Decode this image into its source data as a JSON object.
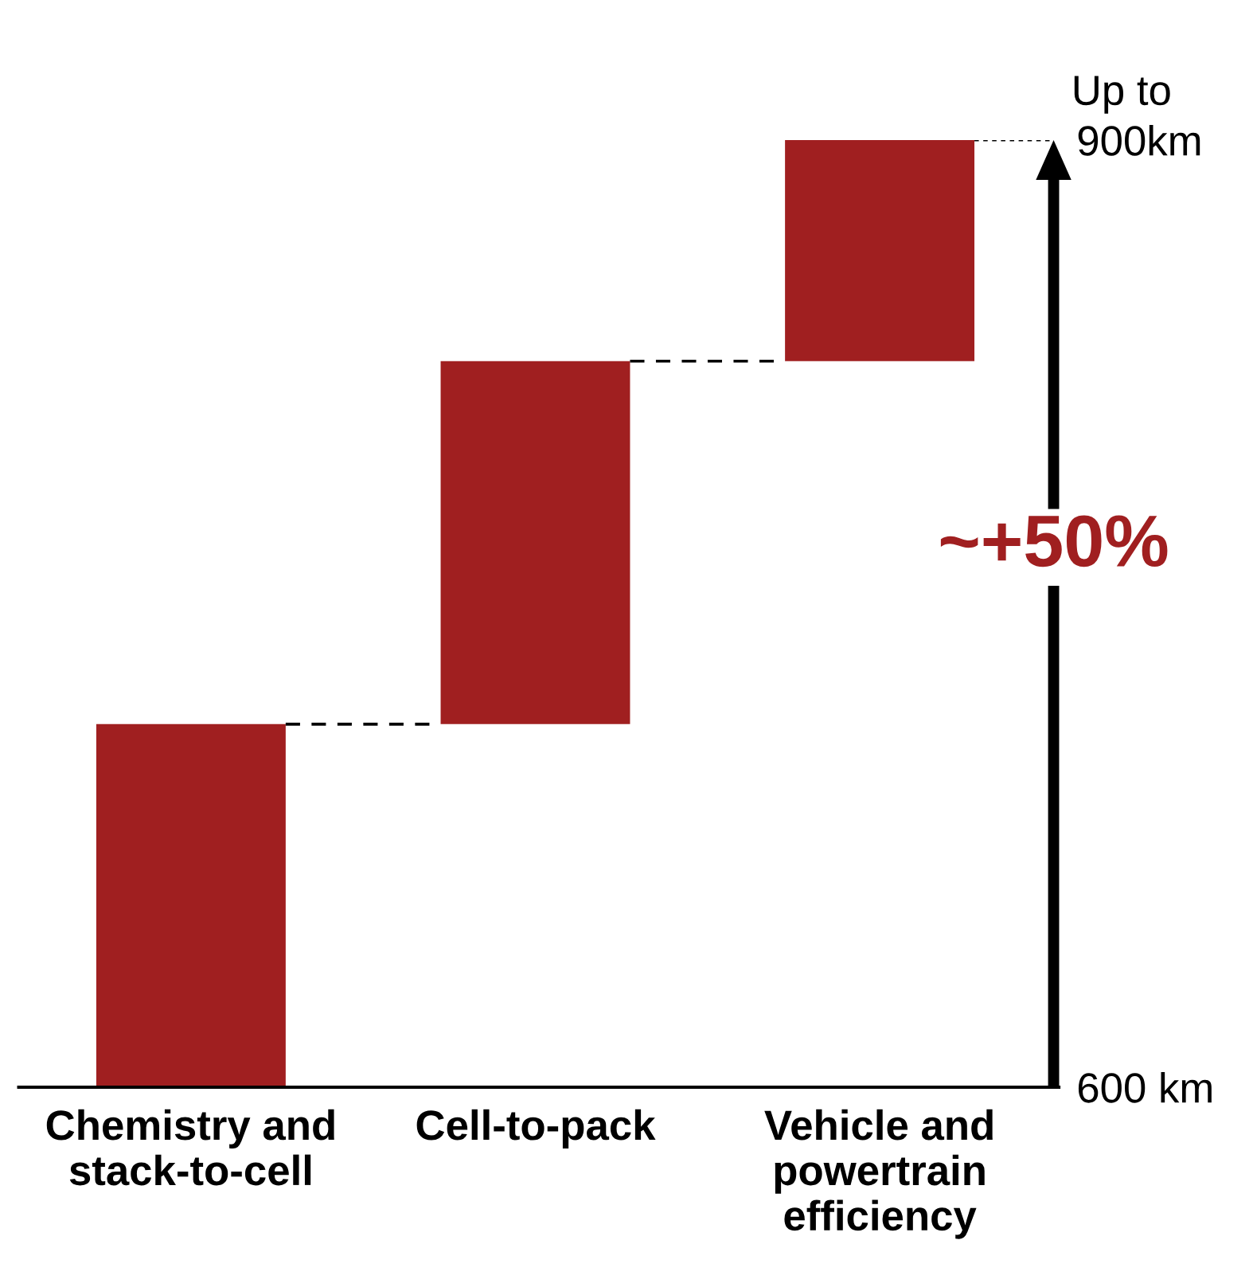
{
  "chart_data": {
    "type": "bar",
    "categories": [
      "Chemistry and\nstack-to-cell",
      "Cell-to-pack",
      "Vehicle and\npowertrain\nefficiency"
    ],
    "values": [
      115,
      115,
      70
    ],
    "base": [
      600,
      715,
      830
    ],
    "color": "#a01f20",
    "ylim": [
      600,
      900
    ],
    "yticks": [
      {
        "value": 600,
        "label": "600 km"
      },
      {
        "value": 900,
        "label": "900km"
      }
    ],
    "grid": false,
    "annotations": [
      "Up to",
      "~+50%"
    ]
  }
}
